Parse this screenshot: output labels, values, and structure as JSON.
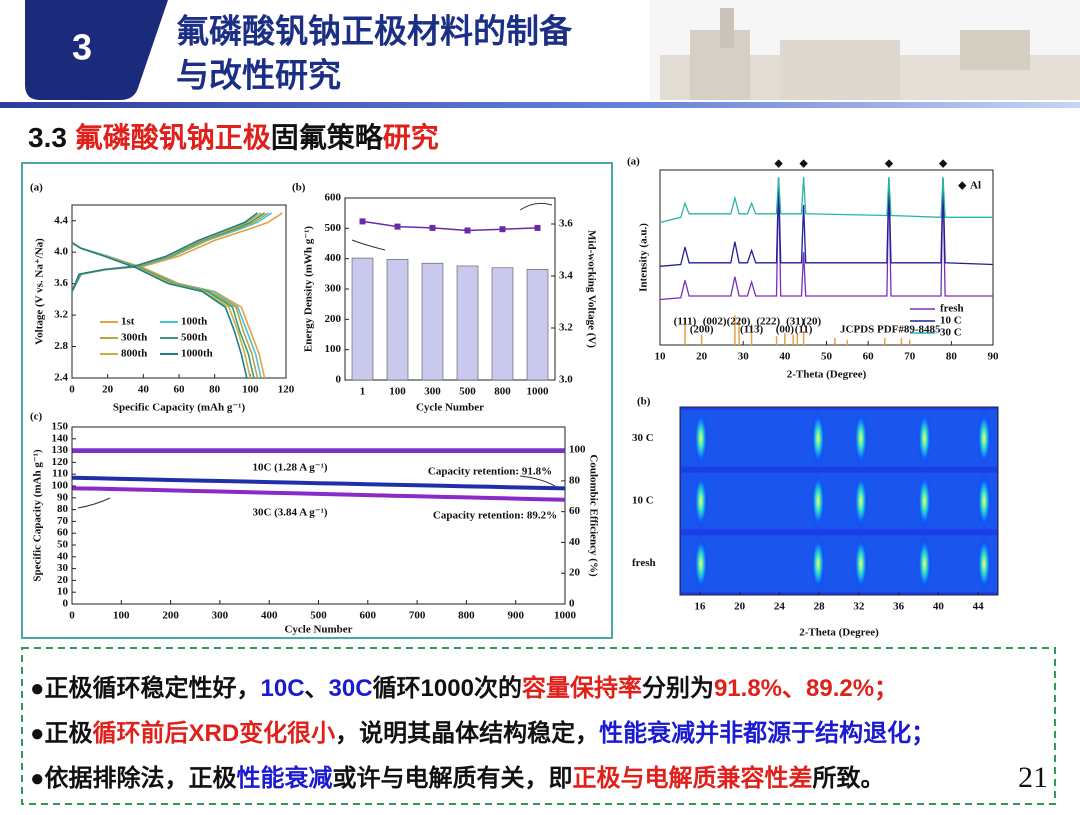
{
  "header": {
    "number": "3",
    "title_lines": [
      "氟磷酸钒钠正极材料的制备",
      "与改性研究"
    ]
  },
  "section": {
    "segments": [
      {
        "text": "3.3 ",
        "color": "#111111"
      },
      {
        "text": "氟磷酸钒钠正极",
        "color": "#e0201a"
      },
      {
        "text": "固氟策略",
        "color": "#111111"
      },
      {
        "text": "研究",
        "color": "#e0201a"
      }
    ]
  },
  "bullets": [
    {
      "segments": [
        {
          "text": "●正极循环稳定性好，",
          "color": "#111111"
        },
        {
          "text": "10C",
          "color": "#1a1ad0"
        },
        {
          "text": "、",
          "color": "#111111"
        },
        {
          "text": "30C",
          "color": "#1a1ad0"
        },
        {
          "text": "循环1000次的",
          "color": "#111111"
        },
        {
          "text": "容量保持率",
          "color": "#e0201a"
        },
        {
          "text": "分别为",
          "color": "#111111"
        },
        {
          "text": "91.8%、89.2%；",
          "color": "#e0201a"
        }
      ]
    },
    {
      "segments": [
        {
          "text": "●正极",
          "color": "#111111"
        },
        {
          "text": "循环前后XRD变化很小",
          "color": "#e0201a"
        },
        {
          "text": "，说明其晶体结构稳定，",
          "color": "#111111"
        },
        {
          "text": "性能衰减并非都源于结构退化；",
          "color": "#1a1ad0"
        }
      ]
    },
    {
      "segments": [
        {
          "text": "●依据排除法，正极",
          "color": "#111111"
        },
        {
          "text": "性能衰减",
          "color": "#1a1ad0"
        },
        {
          "text": "或许与电解质有关，即",
          "color": "#111111"
        },
        {
          "text": "正极与电解质兼容性差",
          "color": "#e0201a"
        },
        {
          "text": "所致。",
          "color": "#111111"
        }
      ]
    }
  ],
  "page_number": "21",
  "chart_data": [
    {
      "type": "line",
      "label": "(a)",
      "xlabel": "Specific Capacity (mAh g⁻¹)",
      "ylabel": "Voltage (V vs. Na⁺/Na)",
      "xlim": [
        0,
        120
      ],
      "xticks": [
        0,
        20,
        40,
        60,
        80,
        100,
        120
      ],
      "ylim": [
        2.4,
        4.6
      ],
      "yticks": [
        2.4,
        2.8,
        3.2,
        3.6,
        {
          "value": 4,
          "label": "4.0"
        },
        4.4
      ],
      "series": [
        {
          "name": "1st",
          "color": "#e8a040",
          "charge": {
            "x": [
              0,
              5,
              20,
              40,
              60,
              80,
              100,
              110,
              118
            ],
            "values": [
              3.5,
              3.72,
              3.78,
              3.82,
              3.95,
              4.15,
              4.3,
              4.38,
              4.5
            ]
          },
          "discharge": {
            "x": [
              0,
              5,
              20,
              40,
              60,
              80,
              95,
              100,
              105,
              108
            ],
            "values": [
              4.12,
              4.05,
              3.95,
              3.8,
              3.6,
              3.5,
              3.3,
              3.0,
              2.7,
              2.4
            ]
          }
        },
        {
          "name": "100th",
          "color": "#49c2d8",
          "charge": {
            "x": [
              0,
              5,
              19,
              38,
              57,
              76,
              95,
              104,
              112
            ],
            "values": [
              3.5,
              3.72,
              3.78,
              3.82,
              3.95,
              4.15,
              4.3,
              4.38,
              4.5
            ]
          },
          "discharge": {
            "x": [
              0,
              5,
              20,
              39,
              59,
              79,
              93,
              98,
              103,
              106
            ],
            "values": [
              4.12,
              4.05,
              3.95,
              3.8,
              3.6,
              3.5,
              3.3,
              3.0,
              2.7,
              2.4
            ]
          }
        },
        {
          "name": "300th",
          "color": "#b5a642",
          "charge": {
            "x": [
              0,
              5,
              19,
              37,
              56,
              75,
              93,
              102,
              110
            ],
            "values": [
              3.5,
              3.72,
              3.78,
              3.82,
              3.95,
              4.15,
              4.3,
              4.38,
              4.5
            ]
          },
          "discharge": {
            "x": [
              0,
              5,
              19,
              39,
              58,
              77,
              92,
              96,
              101,
              104
            ],
            "values": [
              4.12,
              4.05,
              3.95,
              3.8,
              3.6,
              3.5,
              3.3,
              3.0,
              2.7,
              2.4
            ]
          }
        },
        {
          "name": "500th",
          "color": "#3a9c7a",
          "charge": {
            "x": [
              0,
              5,
              18,
              37,
              55,
              73,
              92,
              100,
              108
            ],
            "values": [
              3.5,
              3.72,
              3.78,
              3.82,
              3.95,
              4.15,
              4.3,
              4.38,
              4.5
            ]
          },
          "discharge": {
            "x": [
              0,
              5,
              19,
              38,
              57,
              76,
              90,
              94,
              99,
              102
            ],
            "values": [
              4.12,
              4.05,
              3.95,
              3.8,
              3.6,
              3.5,
              3.3,
              3.0,
              2.7,
              2.4
            ]
          }
        },
        {
          "name": "800th",
          "color": "#c8b040",
          "charge": {
            "x": [
              0,
              4,
              18,
              36,
              54,
              72,
              90,
              98,
              106
            ],
            "values": [
              3.5,
              3.72,
              3.78,
              3.82,
              3.95,
              4.15,
              4.3,
              4.38,
              4.5
            ]
          },
          "discharge": {
            "x": [
              0,
              5,
              19,
              37,
              56,
              74,
              88,
              93,
              97,
              100
            ],
            "values": [
              4.12,
              4.05,
              3.95,
              3.8,
              3.6,
              3.5,
              3.3,
              3.0,
              2.7,
              2.4
            ]
          }
        },
        {
          "name": "1000th",
          "color": "#1f7f8a",
          "charge": {
            "x": [
              0,
              4,
              18,
              35,
              53,
              71,
              88,
              97,
              104
            ],
            "values": [
              3.5,
              3.72,
              3.78,
              3.82,
              3.95,
              4.15,
              4.3,
              4.38,
              4.5
            ]
          },
          "discharge": {
            "x": [
              0,
              5,
              18,
              36,
              54,
              73,
              86,
              91,
              95,
              98
            ],
            "values": [
              4.12,
              4.05,
              3.95,
              3.8,
              3.6,
              3.5,
              3.3,
              3.0,
              2.7,
              2.4
            ]
          }
        }
      ]
    },
    {
      "type": "bar",
      "label": "(b)",
      "xlabel": "Cycle Number",
      "ylabel": "Energy Density (mWh g⁻¹)",
      "y2label": "Mid-working Voltage (V)",
      "categories": [
        "1",
        "100",
        "300",
        "500",
        "800",
        "1000"
      ],
      "ylim": [
        0,
        600
      ],
      "yticks": [
        0,
        100,
        200,
        300,
        400,
        500,
        600
      ],
      "y2lim": [
        3.0,
        3.7
      ],
      "y2ticks": [
        {
          "value": 3,
          "label": "3.0"
        },
        3.2,
        3.4,
        3.6
      ],
      "series": [
        {
          "color": "#c9c9ee",
          "values": [
            402,
            398,
            385,
            376,
            370,
            365
          ]
        },
        {
          "axis": "y2",
          "color": "#6a2aa8",
          "values": [
            3.61,
            3.59,
            3.585,
            3.575,
            3.58,
            3.585
          ]
        }
      ]
    },
    {
      "type": "line",
      "label": "(c)",
      "xlabel": "Cycle Number",
      "ylabel": "Specific Capacity (mAh g⁻¹)",
      "y2label": "Coulombic Efficiency (%)",
      "xlim": [
        0,
        1000
      ],
      "xticks": [
        0,
        100,
        200,
        300,
        400,
        500,
        600,
        700,
        800,
        900,
        1000
      ],
      "ylim": [
        0,
        150
      ],
      "yticks": [
        0,
        10,
        20,
        30,
        40,
        50,
        60,
        70,
        80,
        90,
        100,
        110,
        120,
        130,
        140,
        150
      ],
      "y2lim": [
        0,
        115
      ],
      "y2ticks": [
        0,
        20,
        40,
        60,
        80,
        100
      ],
      "x": [
        1,
        50,
        100,
        150,
        200,
        250,
        300,
        350,
        400,
        450,
        500,
        550,
        600,
        650,
        700,
        750,
        800,
        850,
        900,
        950,
        1000
      ],
      "series": [
        {
          "color": "#1f2fa8",
          "values": [
            107,
            106.5,
            106,
            105.6,
            105.1,
            104.7,
            104.2,
            103.8,
            103.3,
            102.9,
            102.4,
            102,
            101.5,
            101.1,
            100.6,
            100.2,
            99.7,
            99.3,
            98.8,
            98.4,
            98
          ]
        },
        {
          "color": "#8a2ac8",
          "values": [
            98,
            97.8,
            97.3,
            96.8,
            96.3,
            95.8,
            95.3,
            94.8,
            94.3,
            93.8,
            93.3,
            92.8,
            92.3,
            91.8,
            91.3,
            90.8,
            90.3,
            89.8,
            89.3,
            88.8,
            88.3
          ]
        },
        {
          "axis": "y2",
          "color": "#1f2fa8",
          "values": [
            99.8,
            99.8,
            99.8,
            99.8,
            99.8,
            99.8,
            99.8,
            99.8,
            99.8,
            99.8,
            99.8,
            99.8,
            99.8,
            99.8,
            99.8,
            99.8,
            99.8,
            99.8,
            99.8,
            99.8,
            99.8
          ]
        },
        {
          "axis": "y2",
          "color": "#8a2ac8",
          "values": [
            99.4,
            99.4,
            99.4,
            99.4,
            99.4,
            99.4,
            99.4,
            99.4,
            99.4,
            99.4,
            99.4,
            99.4,
            99.4,
            99.4,
            99.4,
            99.4,
            99.4,
            99.4,
            99.4,
            99.4,
            99.4
          ]
        }
      ],
      "annotations": [
        "10C (1.28 A g⁻¹)",
        "Capacity retention: 91.8%",
        "30C (3.84 A g⁻¹)",
        "Capacity retention: 89.2%"
      ]
    },
    {
      "type": "line",
      "label": "(a)",
      "xlabel": "2-Theta (Degree)",
      "ylabel": "Intensity (a.u.)",
      "xlim": [
        10,
        90
      ],
      "xticks": [
        10,
        20,
        30,
        40,
        50,
        60,
        70,
        80,
        90
      ],
      "ylim": [
        0,
        10
      ],
      "x": [
        10,
        15,
        16,
        17,
        27,
        28,
        29,
        31,
        32,
        33,
        38,
        38.5,
        39,
        44,
        44.5,
        45,
        64.5,
        65,
        65.5,
        77.5,
        78,
        78.5,
        90
      ],
      "series": [
        {
          "name": "fresh",
          "color": "#7a2fb8",
          "values": [
            2.6,
            2.7,
            3.7,
            2.8,
            2.8,
            3.9,
            2.8,
            2.8,
            3.6,
            2.8,
            2.8,
            9.5,
            2.8,
            2.8,
            5.3,
            2.8,
            2.8,
            9.5,
            2.8,
            2.8,
            9.5,
            2.8,
            2.8
          ]
        },
        {
          "name": "10 C",
          "color": "#1f1f9a",
          "values": [
            4.5,
            4.6,
            5.6,
            4.7,
            4.7,
            5.9,
            4.7,
            4.7,
            5.4,
            4.7,
            4.7,
            9.5,
            4.7,
            4.7,
            8,
            4.7,
            4.7,
            9.5,
            4.7,
            4.7,
            9.5,
            4.7,
            4.6
          ]
        },
        {
          "name": "30 C",
          "color": "#2ab5a5",
          "values": [
            7,
            7.3,
            8.1,
            7.5,
            7.5,
            8.4,
            7.5,
            7.5,
            8.1,
            7.5,
            7.5,
            9.6,
            7.5,
            7.5,
            9.6,
            7.5,
            7.4,
            9.6,
            7.4,
            7.3,
            9.6,
            7.3,
            7.3
          ]
        }
      ],
      "reference": {
        "name": "JCPDS PDF#89-8485",
        "color": "#e8a040",
        "x": [
          16,
          20,
          28,
          29,
          32,
          38,
          40,
          42,
          43,
          44.5,
          52,
          55,
          64,
          68,
          70
        ],
        "values": [
          1.5,
          0.6,
          1.7,
          1.5,
          1.2,
          0.5,
          0.7,
          0.6,
          0.6,
          0.8,
          0.4,
          0.3,
          0.4,
          0.4,
          0.3
        ]
      },
      "hkl": [
        {
          "x": 16,
          "label": "(111)"
        },
        {
          "x": 20,
          "label": "(200)"
        },
        {
          "x": 26,
          "label": "(002)(220)"
        },
        {
          "x": 32,
          "label": "(113)"
        },
        {
          "x": 36,
          "label": "(222)"
        },
        {
          "x": 40,
          "label": "(00)"
        },
        {
          "x": 42.5,
          "label": "(31)"
        },
        {
          "x": 44.5,
          "label": "(11)"
        },
        {
          "x": 46.5,
          "label": "(20)"
        }
      ],
      "marker": {
        "symbol": "◆",
        "label": "Al",
        "x": [
          38.5,
          44.5,
          65,
          78
        ]
      }
    },
    {
      "type": "heatmap",
      "label": "(b)",
      "xlabel": "2-Theta (Degree)",
      "xlim": [
        14,
        46
      ],
      "xticks": [
        16,
        20,
        24,
        28,
        32,
        36,
        40,
        44
      ],
      "categories": [
        "fresh",
        "10 C",
        "30 C"
      ],
      "peaks": [
        16.1,
        27.9,
        32.2,
        38.6,
        44.6
      ]
    }
  ]
}
